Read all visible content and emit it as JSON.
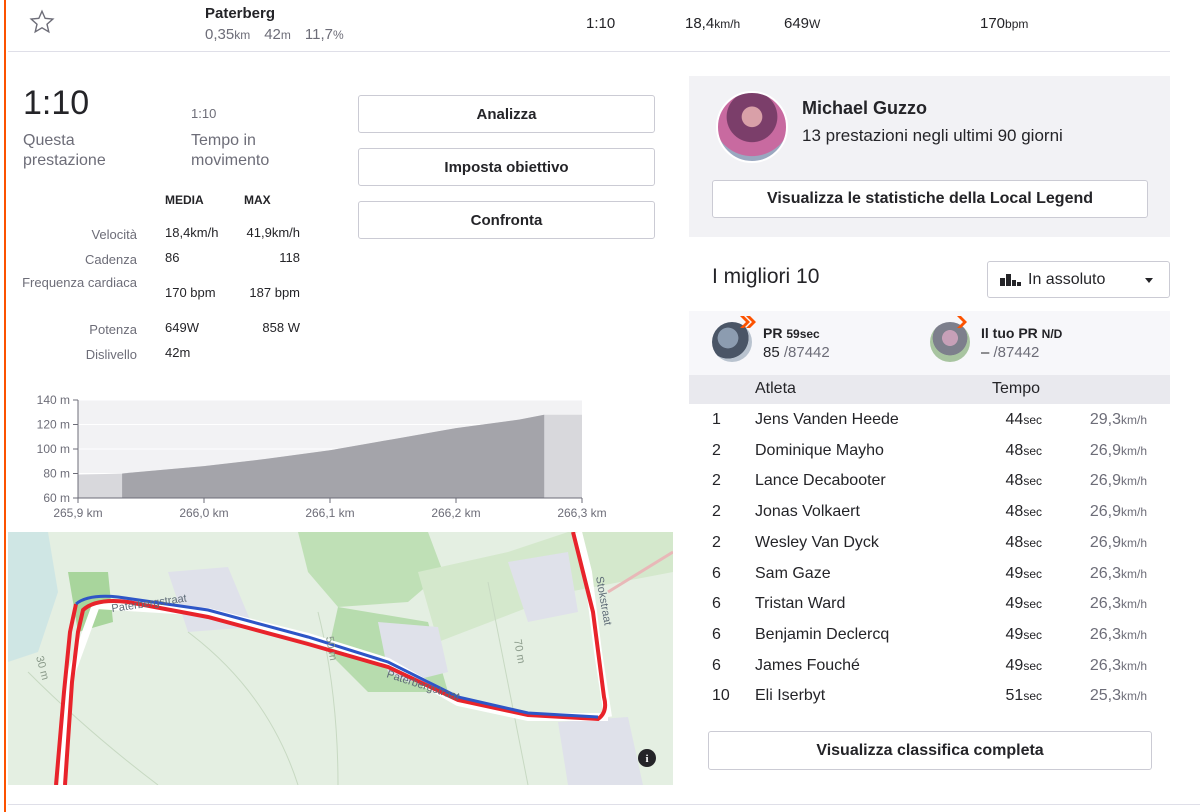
{
  "segment_row": {
    "name": "Paterberg",
    "distance": "0,35",
    "distance_unit": "km",
    "elevation": "42",
    "elevation_unit": "m",
    "grade": "11,7",
    "grade_unit": "%",
    "time": "1:10",
    "speed": "18,4",
    "speed_unit": "km/h",
    "power": "649",
    "power_unit": "W",
    "hr": "170",
    "hr_unit": "bpm"
  },
  "effort": {
    "time": "1:10",
    "time_label": "Questa prestazione",
    "moving_time": "1:10",
    "moving_label": "Tempo in movimento"
  },
  "buttons": {
    "analyze": "Analizza",
    "set_goal": "Imposta obiettivo",
    "compare": "Confronta"
  },
  "stats": {
    "avg_header": "MEDIA",
    "max_header": "MAX",
    "rows": [
      {
        "label": "Velocità",
        "avg": "18,4km/h",
        "max": "41,9km/h"
      },
      {
        "label": "Cadenza",
        "avg": "86",
        "max": "118"
      },
      {
        "label": "Frequenza cardiaca",
        "avg": "170 bpm",
        "max": "187 bpm"
      },
      {
        "label": "Potenza",
        "avg": "649W",
        "max": "858 W"
      },
      {
        "label": "Dislivello",
        "avg": "42m",
        "max": ""
      }
    ]
  },
  "chart_data": {
    "type": "area",
    "title": "",
    "xlabel": "",
    "ylabel": "",
    "x_ticks": [
      "265,9 km",
      "266,0 km",
      "266,1 km",
      "266,2 km",
      "266,3 km"
    ],
    "y_ticks": [
      "140 m",
      "120 m",
      "100 m",
      "80 m",
      "60 m"
    ],
    "ylim": [
      60,
      140
    ],
    "xlim": [
      265.9,
      266.3
    ],
    "x": [
      265.9,
      265.935,
      266.0,
      266.05,
      266.1,
      266.15,
      266.2,
      266.25,
      266.27,
      266.3
    ],
    "y": [
      79,
      80,
      86,
      92,
      99,
      108,
      117,
      124,
      128,
      128
    ],
    "highlight_range": [
      265.935,
      266.27
    ],
    "grid": true
  },
  "map": {
    "street_labels": [
      "Paterbergstraat",
      "Paterbergstraat",
      "Stokstraat"
    ],
    "contour_labels": [
      "30 m",
      "50 m",
      "70 m"
    ],
    "info_icon": "i"
  },
  "local_legend": {
    "name": "Michael Guzzo",
    "subtitle": "13 prestazioni negli ultimi 90 giorni",
    "button": "Visualizza le statistiche della Local Legend"
  },
  "top10": {
    "title": "I migliori 10",
    "filter_label": "In assoluto",
    "pr": {
      "label": "PR",
      "time": "59sec",
      "rank": "85",
      "total": "/87442"
    },
    "your_pr": {
      "label": "Il tuo PR",
      "time": "N/D",
      "rank": "–",
      "total": "/87442"
    },
    "columns": {
      "athlete": "Atleta",
      "time": "Tempo"
    },
    "rows": [
      {
        "rank": "1",
        "name": "Jens Vanden Heede",
        "time": "44",
        "speed": "29,3"
      },
      {
        "rank": "2",
        "name": "Dominique Mayho",
        "time": "48",
        "speed": "26,9"
      },
      {
        "rank": "2",
        "name": "Lance Decabooter",
        "time": "48",
        "speed": "26,9"
      },
      {
        "rank": "2",
        "name": "Jonas Volkaert",
        "time": "48",
        "speed": "26,9"
      },
      {
        "rank": "2",
        "name": "Wesley Van Dyck",
        "time": "48",
        "speed": "26,9"
      },
      {
        "rank": "6",
        "name": "Sam Gaze",
        "time": "49",
        "speed": "26,3"
      },
      {
        "rank": "6",
        "name": "Tristan Ward",
        "time": "49",
        "speed": "26,3"
      },
      {
        "rank": "6",
        "name": "Benjamin Declercq",
        "time": "49",
        "speed": "26,3"
      },
      {
        "rank": "6",
        "name": "James Fouché",
        "time": "49",
        "speed": "26,3"
      },
      {
        "rank": "10",
        "name": "Eli Iserbyt",
        "time": "51",
        "speed": "25,3"
      }
    ],
    "time_unit": "sec",
    "speed_unit": "km/h",
    "full_button": "Visualizza classifica completa"
  },
  "colors": {
    "accent": "#fc5200",
    "route_red": "#e8232b",
    "route_blue": "#2e56c7"
  }
}
